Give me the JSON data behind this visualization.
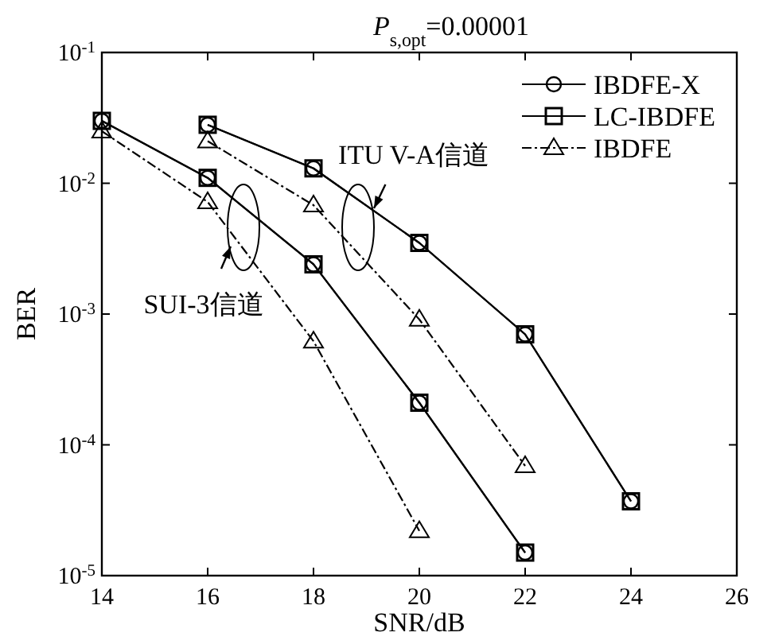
{
  "chart_data": {
    "type": "line",
    "title": "*P*$_{s,opt}$=0.00001",
    "xlabel": "SNR/dB",
    "ylabel": "BER",
    "xlim": [
      14,
      26
    ],
    "xticks": [
      14,
      16,
      18,
      20,
      22,
      24,
      26
    ],
    "ylim": [
      1e-05,
      0.1
    ],
    "yticks": [
      {
        "value": 0.1,
        "label": "10$^{-1}$"
      },
      {
        "value": 0.01,
        "label": "10$^{-2}$"
      },
      {
        "value": 0.001,
        "label": "10$^{-3}$"
      },
      {
        "value": 0.0001,
        "label": "10$^{-4}$"
      },
      {
        "value": 1e-05,
        "label": "10$^{-5}$"
      }
    ],
    "log": "y",
    "grid": false,
    "legend": "top right",
    "series": [
      {
        "name": "IBDFE-X",
        "color": "#000000",
        "marker": "circle",
        "line_style": "solid",
        "x": [
          14,
          16,
          18,
          20,
          22
        ],
        "values": [
          0.03,
          0.011,
          0.0024,
          0.00021,
          1.5e-05
        ]
      },
      {
        "name": "LC-IBDFE",
        "color": "#000000",
        "marker": "square",
        "line_style": "solid",
        "x": [
          14,
          16,
          18,
          20,
          22
        ],
        "values": [
          0.03,
          0.011,
          0.0024,
          0.00021,
          1.5e-05
        ]
      },
      {
        "name": "IBDFE",
        "color": "#000000",
        "marker": "triangle",
        "line_style": "dashed",
        "x": [
          14,
          16,
          18,
          20
        ],
        "values": [
          0.025,
          0.0072,
          0.00062,
          2.2e-05
        ]
      },
      {
        "color": "#000000",
        "marker": "circle",
        "line_style": "solid",
        "x": [
          16,
          18,
          20,
          22,
          24
        ],
        "values": [
          0.028,
          0.013,
          0.0035,
          0.0007,
          3.7e-05
        ]
      },
      {
        "color": "#000000",
        "marker": "square",
        "line_style": "solid",
        "x": [
          16,
          18,
          20,
          22,
          24
        ],
        "values": [
          0.028,
          0.013,
          0.0035,
          0.0007,
          3.7e-05
        ]
      },
      {
        "color": "#000000",
        "marker": "triangle",
        "line_style": "dashed",
        "x": [
          16,
          18,
          20,
          22
        ],
        "values": [
          0.021,
          0.0068,
          0.00091,
          6.9e-05
        ]
      }
    ],
    "annotations": [
      "ITU V-A信道",
      "SUI-3信道"
    ]
  }
}
